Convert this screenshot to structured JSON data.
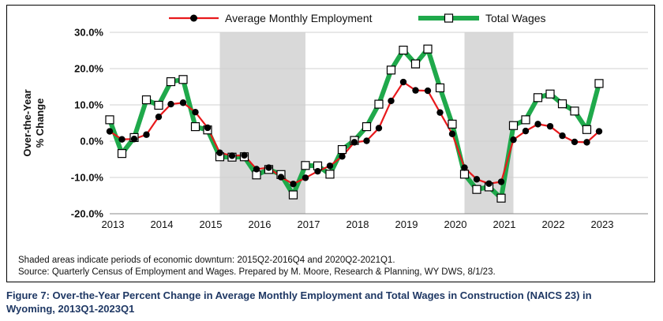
{
  "chart_data": {
    "type": "line",
    "ylabel": "Over-the-Year\n% Change",
    "ylim": [
      -20,
      30
    ],
    "yticks": [
      -20,
      -10,
      0,
      10,
      20,
      30
    ],
    "ytick_labels": [
      "-20.0%",
      "-10.0%",
      "0.0%",
      "10.0%",
      "20.0%",
      "30.0%"
    ],
    "xlim": [
      2013,
      2024
    ],
    "xticks": [
      2013,
      2014,
      2015,
      2016,
      2017,
      2018,
      2019,
      2020,
      2021,
      2022,
      2023
    ],
    "xtick_labels": [
      "2013",
      "2014",
      "2015",
      "2016",
      "2017",
      "2018",
      "2019",
      "2020",
      "2021",
      "2022",
      "2023"
    ],
    "shaded_periods": [
      [
        "2015Q2",
        "2016Q4"
      ],
      [
        "2020Q2",
        "2021Q1"
      ]
    ],
    "x": [
      "2013Q1",
      "2013Q2",
      "2013Q3",
      "2013Q4",
      "2014Q1",
      "2014Q2",
      "2014Q3",
      "2014Q4",
      "2015Q1",
      "2015Q2",
      "2015Q3",
      "2015Q4",
      "2016Q1",
      "2016Q2",
      "2016Q3",
      "2016Q4",
      "2017Q1",
      "2017Q2",
      "2017Q3",
      "2017Q4",
      "2018Q1",
      "2018Q2",
      "2018Q3",
      "2018Q4",
      "2019Q1",
      "2019Q2",
      "2019Q3",
      "2019Q4",
      "2020Q1",
      "2020Q2",
      "2020Q3",
      "2020Q4",
      "2021Q1",
      "2021Q2",
      "2021Q3",
      "2021Q4",
      "2022Q1",
      "2022Q2",
      "2022Q3",
      "2022Q4",
      "2023Q1"
    ],
    "series": [
      {
        "name": "Average Monthly Employment",
        "color": "#e8191c",
        "values": [
          2.7,
          0.5,
          0.6,
          1.8,
          6.7,
          10.2,
          10.6,
          8.0,
          3.7,
          -3.2,
          -4.0,
          -3.9,
          -7.7,
          -7.3,
          -9.9,
          -11.8,
          -10.1,
          -8.3,
          -6.8,
          -4.2,
          -0.3,
          0.1,
          3.6,
          11.1,
          16.3,
          14.0,
          13.9,
          7.9,
          2.0,
          -7.3,
          -10.5,
          -11.7,
          -11.2,
          0.4,
          2.8,
          4.7,
          4.1,
          1.5,
          -0.2,
          -0.3,
          2.7
        ]
      },
      {
        "name": "Total Wages",
        "color": "#1fa94b",
        "values": [
          5.9,
          -3.4,
          1.0,
          11.4,
          9.9,
          16.4,
          17.0,
          4.0,
          3.1,
          -4.3,
          -4.4,
          -4.3,
          -9.3,
          -7.8,
          -9.2,
          -14.8,
          -6.7,
          -6.8,
          -9.1,
          -2.3,
          0.2,
          4.0,
          10.2,
          19.6,
          25.1,
          21.3,
          25.4,
          14.7,
          4.7,
          -9.1,
          -13.3,
          -12.6,
          -15.7,
          4.3,
          5.9,
          12.0,
          13.0,
          10.3,
          8.3,
          3.2,
          15.9
        ]
      }
    ],
    "notes": [
      "Shaded areas indicate periods of economic downturn: 2015Q2-2016Q4 and 2020Q2-2021Q1.",
      "Source: Quarterly Census of Employment and Wages. Prepared by M. Moore, Research & Planning, WY DWS, 8/1/23."
    ]
  },
  "caption": {
    "line1": "Figure 7: Over-the-Year Percent Change in Average Monthly Employment and Total Wages in Construction (NAICS 23) in",
    "line2": "Wyoming, 2013Q1-2023Q1"
  }
}
